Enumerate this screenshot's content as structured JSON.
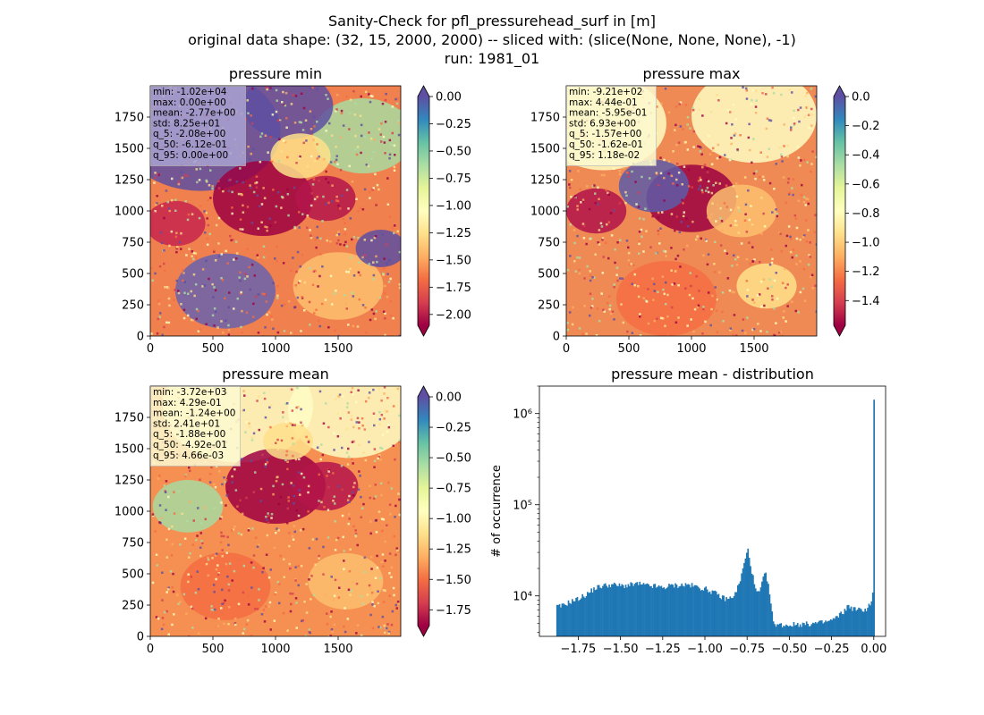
{
  "figure": {
    "suptitle_lines": [
      "Sanity-Check for pfl_pressurehead_surf in [m]",
      "original data shape: (32, 15, 2000, 2000) -- sliced with: (slice(None, None, None), -1)",
      "run: 1981_01"
    ]
  },
  "chart_data": [
    {
      "type": "heatmap",
      "title": "pressure min",
      "colormap": "Spectral",
      "x_ticks": [
        "0",
        "500",
        "1000",
        "1500"
      ],
      "y_ticks": [
        "0",
        "250",
        "500",
        "750",
        "1000",
        "1250",
        "1500",
        "1750"
      ],
      "xlim": [
        0,
        2000
      ],
      "ylim": [
        0,
        2000
      ],
      "colorbar": {
        "min": -2.1,
        "max": 0.0,
        "ticks": [
          "0.00",
          "-0.25",
          "-0.50",
          "-0.75",
          "-1.00",
          "-1.25",
          "-1.50",
          "-1.75",
          "-2.00"
        ],
        "tick_values": [
          0,
          -0.25,
          -0.5,
          -0.75,
          -1.0,
          -1.25,
          -1.5,
          -1.75,
          -2.0
        ],
        "extend": "both",
        "over_color": "#5e4fa2",
        "under_color": "#9e0142"
      },
      "stats": [
        "min: -1.02e+04",
        "max: 0.00e+00",
        "mean: -2.77e+00",
        "std: 8.25e+01",
        "q_5: -2.08e+00",
        "q_50: -6.12e-01",
        "q_95: 0.00e+00"
      ],
      "stats_box_color": "#a9a3d1"
    },
    {
      "type": "heatmap",
      "title": "pressure max",
      "colormap": "Spectral",
      "x_ticks": [
        "0",
        "500",
        "1000",
        "1500"
      ],
      "y_ticks": [
        "0",
        "250",
        "500",
        "750",
        "1000",
        "1250",
        "1500",
        "1750"
      ],
      "xlim": [
        0,
        2000
      ],
      "ylim": [
        0,
        2000
      ],
      "colorbar": {
        "min": -1.57,
        "max": 0.0,
        "ticks": [
          "0.0",
          "-0.2",
          "-0.4",
          "-0.6",
          "-0.8",
          "-1.0",
          "-1.2",
          "-1.4"
        ],
        "tick_values": [
          0,
          -0.2,
          -0.4,
          -0.6,
          -0.8,
          -1.0,
          -1.2,
          -1.4
        ],
        "extend": "both",
        "over_color": "#5e4fa2",
        "under_color": "#9e0142"
      },
      "stats": [
        "min: -9.21e+02",
        "max: 4.44e-01",
        "mean: -5.95e-01",
        "std: 6.93e+00",
        "q_5: -1.57e+00",
        "q_50: -1.62e-01",
        "q_95: 1.18e-02"
      ],
      "stats_box_color": "#fdfbd0"
    },
    {
      "type": "heatmap",
      "title": "pressure mean",
      "colormap": "Spectral",
      "x_ticks": [
        "0",
        "500",
        "1000",
        "1500"
      ],
      "y_ticks": [
        "0",
        "250",
        "500",
        "750",
        "1000",
        "1250",
        "1500",
        "1750"
      ],
      "xlim": [
        0,
        2000
      ],
      "ylim": [
        0,
        2000
      ],
      "colorbar": {
        "min": -1.88,
        "max": 0.0,
        "ticks": [
          "0.00",
          "-0.25",
          "-0.50",
          "-0.75",
          "-1.00",
          "-1.25",
          "-1.50",
          "-1.75"
        ],
        "tick_values": [
          0,
          -0.25,
          -0.5,
          -0.75,
          -1.0,
          -1.25,
          -1.5,
          -1.75
        ],
        "extend": "both",
        "over_color": "#5e4fa2",
        "under_color": "#9e0142"
      },
      "stats": [
        "min: -3.72e+03",
        "max: 4.29e-01",
        "mean: -1.24e+00",
        "std: 2.41e+01",
        "q_5: -1.88e+00",
        "q_50: -4.92e-01",
        "q_95: 4.66e-03"
      ],
      "stats_box_color": "#fdfbd0"
    },
    {
      "type": "bar",
      "title": "pressure mean - distribution",
      "ylabel": "# of occurrence",
      "yscale": "log",
      "xlim": [
        -1.98,
        0.07
      ],
      "ylim": [
        3600,
        2000000
      ],
      "x_ticks": [
        "−1.75",
        "−1.50",
        "−1.25",
        "−1.00",
        "−0.75",
        "−0.50",
        "−0.25",
        "0.00"
      ],
      "x_tick_values": [
        -1.75,
        -1.5,
        -1.25,
        -1.0,
        -0.75,
        -0.5,
        -0.25,
        0.0
      ],
      "y_ticks": [
        "10⁴",
        "10⁵",
        "10⁶"
      ],
      "y_tick_values": [
        10000,
        100000,
        1000000
      ],
      "bar_color": "#1f77b4",
      "bin_start": -1.88,
      "bin_end": 0.005,
      "bin_count": 250,
      "profile_points": [
        [
          -1.88,
          7600
        ],
        [
          -1.85,
          7700
        ],
        [
          -1.8,
          8600
        ],
        [
          -1.75,
          9300
        ],
        [
          -1.7,
          10400
        ],
        [
          -1.65,
          12200
        ],
        [
          -1.6,
          13000
        ],
        [
          -1.55,
          13300
        ],
        [
          -1.5,
          12900
        ],
        [
          -1.45,
          13100
        ],
        [
          -1.4,
          13600
        ],
        [
          -1.35,
          13000
        ],
        [
          -1.3,
          12800
        ],
        [
          -1.25,
          12300
        ],
        [
          -1.2,
          13000
        ],
        [
          -1.15,
          13100
        ],
        [
          -1.1,
          13300
        ],
        [
          -1.05,
          12600
        ],
        [
          -1.0,
          12000
        ],
        [
          -0.95,
          11000
        ],
        [
          -0.9,
          9600
        ],
        [
          -0.86,
          9200
        ],
        [
          -0.82,
          10500
        ],
        [
          -0.79,
          15000
        ],
        [
          -0.76,
          26000
        ],
        [
          -0.745,
          32000
        ],
        [
          -0.73,
          22000
        ],
        [
          -0.7,
          11500
        ],
        [
          -0.68,
          10500
        ],
        [
          -0.66,
          14000
        ],
        [
          -0.645,
          18000
        ],
        [
          -0.63,
          15000
        ],
        [
          -0.61,
          8500
        ],
        [
          -0.595,
          5000
        ],
        [
          -0.55,
          4800
        ],
        [
          -0.5,
          4800
        ],
        [
          -0.45,
          4900
        ],
        [
          -0.4,
          4900
        ],
        [
          -0.35,
          5000
        ],
        [
          -0.3,
          5100
        ],
        [
          -0.25,
          5400
        ],
        [
          -0.22,
          5800
        ],
        [
          -0.18,
          6700
        ],
        [
          -0.15,
          7800
        ],
        [
          -0.12,
          7200
        ],
        [
          -0.08,
          7000
        ],
        [
          -0.04,
          7200
        ],
        [
          -0.01,
          9000
        ],
        [
          -0.005,
          11000
        ]
      ],
      "peak": {
        "x": -0.002,
        "value": 1420000
      }
    }
  ]
}
